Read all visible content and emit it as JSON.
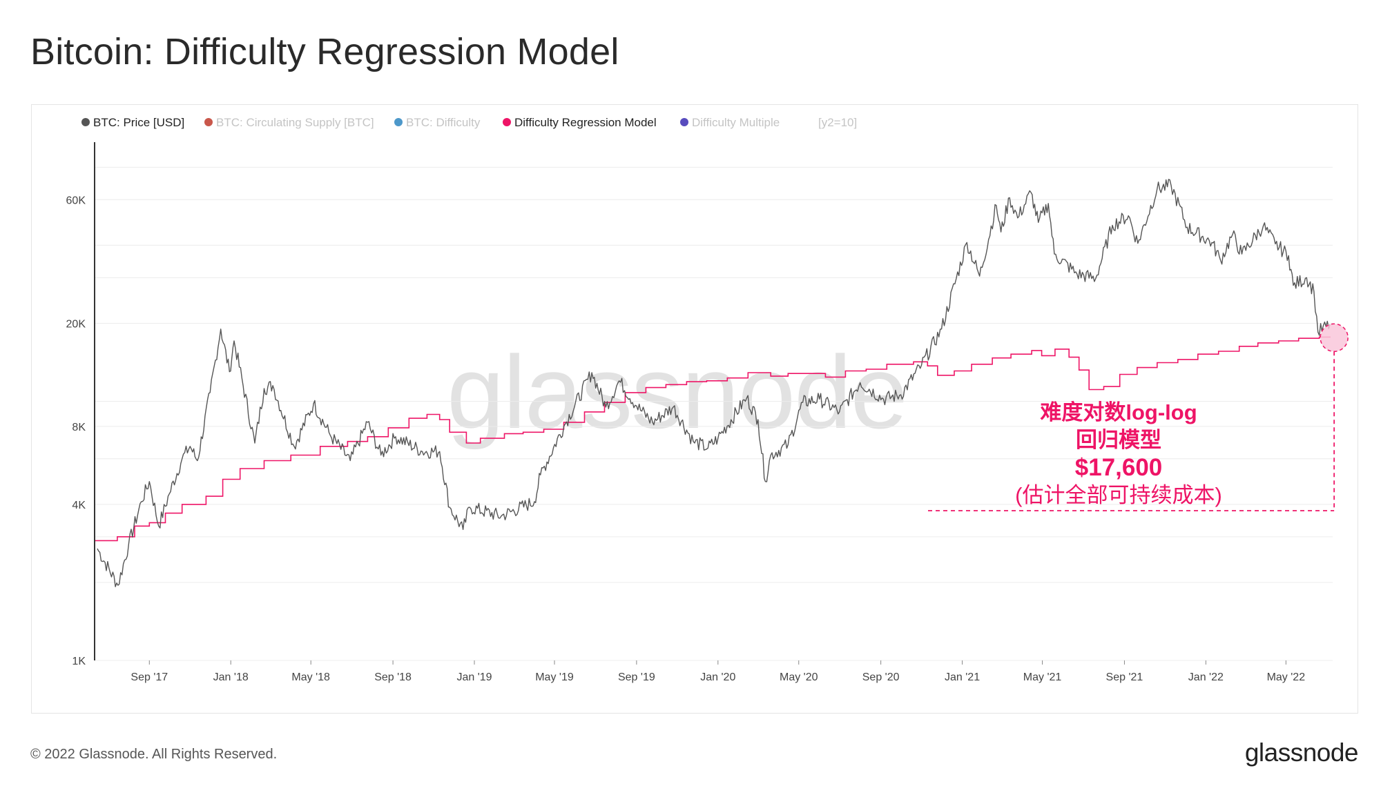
{
  "header": {
    "title": "Bitcoin: Difficulty Regression Model"
  },
  "legend": {
    "items": [
      {
        "label": "BTC: Price [USD]",
        "color": "#555555",
        "active": true
      },
      {
        "label": "BTC: Circulating Supply [BTC]",
        "color": "#c0392b",
        "active": false
      },
      {
        "label": "BTC: Difficulty",
        "color": "#2e86c1",
        "active": false
      },
      {
        "label": "Difficulty Regression Model",
        "color": "#ee1466",
        "active": true
      },
      {
        "label": "Difficulty Multiple",
        "color": "#3b2db3",
        "active": false
      },
      {
        "label": "[y2=10]",
        "color": "",
        "active": false
      }
    ]
  },
  "annotation": {
    "line1": "难度对数log-log",
    "line2": "回归模型",
    "line3": "$17,600",
    "line4": "(估计全部可持续成本)"
  },
  "watermark": "glassnode",
  "footer": {
    "copyright": "© 2022 Glassnode. All Rights Reserved.",
    "logo": "glassnode"
  },
  "colors": {
    "price": "#555555",
    "model": "#ee1466",
    "grid": "#ececec"
  },
  "chart_data": {
    "type": "line",
    "title": "Bitcoin: Difficulty Regression Model",
    "y_scale": "log",
    "ylim": [
      1000,
      100000
    ],
    "ytick_values": [
      1000,
      4000,
      8000,
      20000,
      60000
    ],
    "ytick_labels": [
      "1K",
      "4K",
      "8K",
      "20K",
      "60K"
    ],
    "xlim": [
      "2017-06-12",
      "2022-07-10"
    ],
    "xtick_values": [
      "2017-09-01",
      "2018-01-01",
      "2018-05-01",
      "2018-09-01",
      "2019-01-01",
      "2019-05-01",
      "2019-09-01",
      "2020-01-01",
      "2020-05-01",
      "2020-09-01",
      "2021-01-01",
      "2021-05-01",
      "2021-09-01",
      "2022-01-01",
      "2022-05-01"
    ],
    "xtick_labels": [
      "Sep '17",
      "Jan '18",
      "May '18",
      "Sep '18",
      "Jan '19",
      "May '19",
      "Sep '19",
      "Jan '20",
      "May '20",
      "Sep '20",
      "Jan '21",
      "May '21",
      "Sep '21",
      "Jan '22",
      "May '22"
    ],
    "grid": true,
    "legend_position": "top-left",
    "series": [
      {
        "name": "BTC: Price [USD]",
        "color": "#555555",
        "points": [
          [
            "2017-06-15",
            2700
          ],
          [
            "2017-07-16",
            1950
          ],
          [
            "2017-08-01",
            2800
          ],
          [
            "2017-08-20",
            4100
          ],
          [
            "2017-09-01",
            4900
          ],
          [
            "2017-09-15",
            3300
          ],
          [
            "2017-10-01",
            4400
          ],
          [
            "2017-10-20",
            6000
          ],
          [
            "2017-11-01",
            6700
          ],
          [
            "2017-11-12",
            5900
          ],
          [
            "2017-12-01",
            10800
          ],
          [
            "2017-12-17",
            19000
          ],
          [
            "2017-12-30",
            13000
          ],
          [
            "2018-01-06",
            17100
          ],
          [
            "2018-02-06",
            6900
          ],
          [
            "2018-02-20",
            11200
          ],
          [
            "2018-03-05",
            11500
          ],
          [
            "2018-04-06",
            6700
          ],
          [
            "2018-05-05",
            9800
          ],
          [
            "2018-05-30",
            7400
          ],
          [
            "2018-06-29",
            5900
          ],
          [
            "2018-07-25",
            8300
          ],
          [
            "2018-08-14",
            6200
          ],
          [
            "2018-09-05",
            7300
          ],
          [
            "2018-10-15",
            6400
          ],
          [
            "2018-11-10",
            6400
          ],
          [
            "2018-11-25",
            3900
          ],
          [
            "2018-12-15",
            3200
          ],
          [
            "2018-12-25",
            3900
          ],
          [
            "2019-02-10",
            3600
          ],
          [
            "2019-04-01",
            4100
          ],
          [
            "2019-04-10",
            5200
          ],
          [
            "2019-05-15",
            8000
          ],
          [
            "2019-06-26",
            12900
          ],
          [
            "2019-07-17",
            9500
          ],
          [
            "2019-08-06",
            12000
          ],
          [
            "2019-09-01",
            9600
          ],
          [
            "2019-09-25",
            8300
          ],
          [
            "2019-10-26",
            9500
          ],
          [
            "2019-11-25",
            7000
          ],
          [
            "2019-12-17",
            6600
          ],
          [
            "2020-01-01",
            7200
          ],
          [
            "2020-02-13",
            10300
          ],
          [
            "2020-03-01",
            8500
          ],
          [
            "2020-03-12",
            4900
          ],
          [
            "2020-03-20",
            6200
          ],
          [
            "2020-04-15",
            6800
          ],
          [
            "2020-05-07",
            9900
          ],
          [
            "2020-06-01",
            10200
          ],
          [
            "2020-07-01",
            9100
          ],
          [
            "2020-08-01",
            11800
          ],
          [
            "2020-09-05",
            10200
          ],
          [
            "2020-10-01",
            10600
          ],
          [
            "2020-11-01",
            13800
          ],
          [
            "2020-12-01",
            19000
          ],
          [
            "2021-01-08",
            41000
          ],
          [
            "2021-01-27",
            30400
          ],
          [
            "2021-02-21",
            57000
          ],
          [
            "2021-02-28",
            45000
          ],
          [
            "2021-03-13",
            61000
          ],
          [
            "2021-03-25",
            51000
          ],
          [
            "2021-04-14",
            64000
          ],
          [
            "2021-04-25",
            49000
          ],
          [
            "2021-05-10",
            58000
          ],
          [
            "2021-05-19",
            37000
          ],
          [
            "2021-06-22",
            31000
          ],
          [
            "2021-07-20",
            29800
          ],
          [
            "2021-08-14",
            47800
          ],
          [
            "2021-09-07",
            52000
          ],
          [
            "2021-09-21",
            40700
          ],
          [
            "2021-10-20",
            66000
          ],
          [
            "2021-11-10",
            68000
          ],
          [
            "2021-12-04",
            47000
          ],
          [
            "2022-01-10",
            41000
          ],
          [
            "2022-01-23",
            35000
          ],
          [
            "2022-02-10",
            44000
          ],
          [
            "2022-02-24",
            37000
          ],
          [
            "2022-03-28",
            47500
          ],
          [
            "2022-04-15",
            40500
          ],
          [
            "2022-05-05",
            36500
          ],
          [
            "2022-05-12",
            28000
          ],
          [
            "2022-06-01",
            30000
          ],
          [
            "2022-06-12",
            26500
          ],
          [
            "2022-06-18",
            18500
          ],
          [
            "2022-07-06",
            19800
          ]
        ]
      },
      {
        "name": "Difficulty Regression Model",
        "color": "#ee1466",
        "points": [
          [
            "2017-06-12",
            2900
          ],
          [
            "2017-07-15",
            3000
          ],
          [
            "2017-08-10",
            3300
          ],
          [
            "2017-09-01",
            3400
          ],
          [
            "2017-09-25",
            3700
          ],
          [
            "2017-10-20",
            4000
          ],
          [
            "2017-11-25",
            4300
          ],
          [
            "2017-12-20",
            5000
          ],
          [
            "2018-01-15",
            5500
          ],
          [
            "2018-02-20",
            5900
          ],
          [
            "2018-04-01",
            6200
          ],
          [
            "2018-05-15",
            6700
          ],
          [
            "2018-06-25",
            7000
          ],
          [
            "2018-07-25",
            7300
          ],
          [
            "2018-08-25",
            7900
          ],
          [
            "2018-09-25",
            8600
          ],
          [
            "2018-10-22",
            8900
          ],
          [
            "2018-11-10",
            8500
          ],
          [
            "2018-11-25",
            7600
          ],
          [
            "2018-12-20",
            6900
          ],
          [
            "2019-01-10",
            7200
          ],
          [
            "2019-02-15",
            7500
          ],
          [
            "2019-03-15",
            7600
          ],
          [
            "2019-04-15",
            7800
          ],
          [
            "2019-05-15",
            8300
          ],
          [
            "2019-06-15",
            9100
          ],
          [
            "2019-07-15",
            9900
          ],
          [
            "2019-08-15",
            10800
          ],
          [
            "2019-09-15",
            11300
          ],
          [
            "2019-10-15",
            11600
          ],
          [
            "2019-11-15",
            11900
          ],
          [
            "2019-12-15",
            12000
          ],
          [
            "2020-01-15",
            12300
          ],
          [
            "2020-02-15",
            12900
          ],
          [
            "2020-03-20",
            12500
          ],
          [
            "2020-04-15",
            12800
          ],
          [
            "2020-05-15",
            12800
          ],
          [
            "2020-06-10",
            12400
          ],
          [
            "2020-07-10",
            13100
          ],
          [
            "2020-08-10",
            13300
          ],
          [
            "2020-09-10",
            13900
          ],
          [
            "2020-10-20",
            14200
          ],
          [
            "2020-11-10",
            13700
          ],
          [
            "2020-11-25",
            12600
          ],
          [
            "2020-12-20",
            13100
          ],
          [
            "2021-01-15",
            13900
          ],
          [
            "2021-02-15",
            14700
          ],
          [
            "2021-03-15",
            15200
          ],
          [
            "2021-04-15",
            15700
          ],
          [
            "2021-04-30",
            15000
          ],
          [
            "2021-05-20",
            15900
          ],
          [
            "2021-06-10",
            14800
          ],
          [
            "2021-06-25",
            13200
          ],
          [
            "2021-07-10",
            11100
          ],
          [
            "2021-08-01",
            11400
          ],
          [
            "2021-08-25",
            12700
          ],
          [
            "2021-09-20",
            13500
          ],
          [
            "2021-10-20",
            14100
          ],
          [
            "2021-11-20",
            14500
          ],
          [
            "2021-12-20",
            15200
          ],
          [
            "2022-01-20",
            15600
          ],
          [
            "2022-02-20",
            16300
          ],
          [
            "2022-03-20",
            16800
          ],
          [
            "2022-04-20",
            17100
          ],
          [
            "2022-05-20",
            17500
          ],
          [
            "2022-06-20",
            17700
          ],
          [
            "2022-07-06",
            17600
          ]
        ]
      }
    ],
    "annotations": [
      {
        "date": "2022-07-06",
        "value": 17600,
        "label": "$17,600"
      }
    ]
  }
}
